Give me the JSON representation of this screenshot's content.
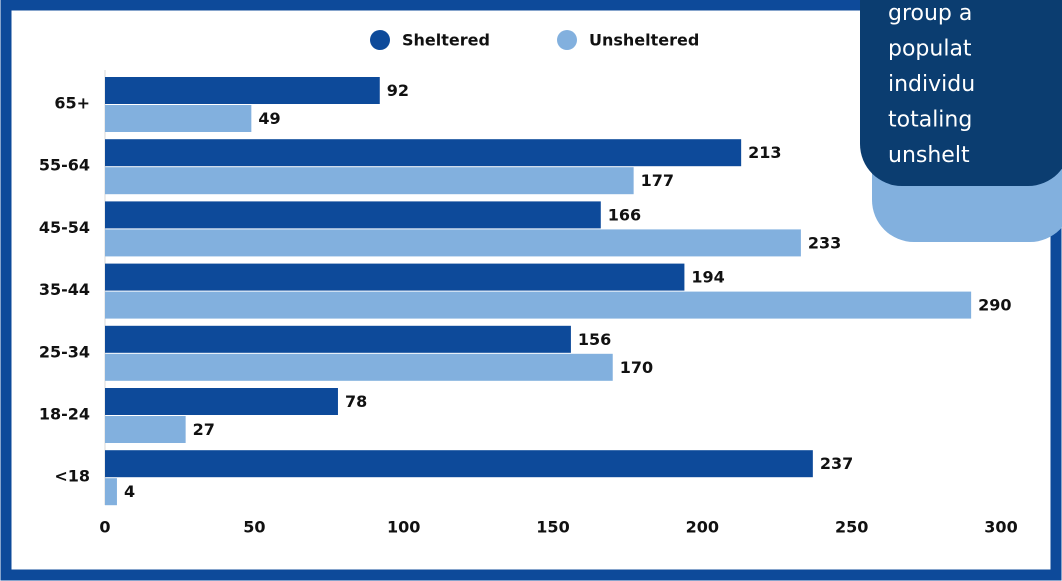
{
  "chart_data": {
    "type": "bar",
    "orientation": "horizontal",
    "categories": [
      "65+",
      "55-64",
      "45-54",
      "35-44",
      "25-34",
      "18-24",
      "<18"
    ],
    "series": [
      {
        "name": "Sheltered",
        "color": "#0d4a9a",
        "values": [
          92,
          213,
          166,
          194,
          156,
          78,
          237
        ]
      },
      {
        "name": "Unsheltered",
        "color": "#82b0de",
        "values": [
          49,
          177,
          233,
          290,
          170,
          27,
          4
        ]
      }
    ],
    "xlim": [
      0,
      300
    ],
    "xticks": [
      0,
      50,
      100,
      150,
      200,
      250,
      300
    ],
    "legend": "top"
  },
  "callout": {
    "lines": [
      "group a",
      "populat",
      "individu",
      "totaling",
      "unshelt"
    ]
  }
}
